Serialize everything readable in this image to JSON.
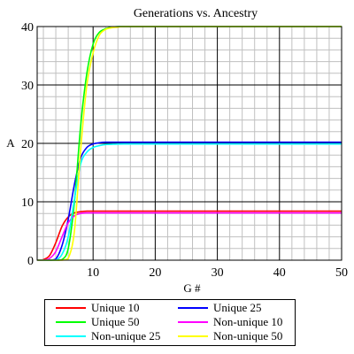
{
  "chart_data": {
    "type": "line",
    "title": "Generations vs. Ancestry",
    "xlabel": "G #",
    "ylabel": "A",
    "xlim": [
      1,
      50
    ],
    "ylim": [
      0,
      40
    ],
    "xticks": [
      10,
      20,
      30,
      40,
      50
    ],
    "yticks": [
      0,
      10,
      20,
      30,
      40
    ],
    "grid": true,
    "legend_position": "bottom",
    "series": [
      {
        "name": "Unique 10",
        "color": "#ff0000",
        "x": [
          1,
          2,
          3,
          4,
          5,
          6,
          7,
          8,
          9,
          10,
          12,
          15,
          20,
          30,
          40,
          50
        ],
        "y": [
          0,
          0.1,
          0.8,
          3,
          5.8,
          7.4,
          8.1,
          8.3,
          8.4,
          8.4,
          8.4,
          8.4,
          8.4,
          8.4,
          8.4,
          8.4
        ]
      },
      {
        "name": "Unique 25",
        "color": "#0000ff",
        "x": [
          1,
          2,
          3,
          4,
          5,
          6,
          7,
          8,
          9,
          10,
          11,
          12,
          15,
          20,
          30,
          40,
          50
        ],
        "y": [
          0,
          0,
          0,
          0.2,
          2.5,
          7,
          13,
          17.5,
          19.3,
          19.9,
          20.1,
          20.2,
          20.2,
          20.2,
          20.2,
          20.2,
          20.2
        ]
      },
      {
        "name": "Unique 50",
        "color": "#00ff00",
        "x": [
          1,
          2,
          3,
          4,
          5,
          6,
          7,
          8,
          9,
          10,
          11,
          12,
          13,
          14,
          15,
          20,
          30,
          40,
          50
        ],
        "y": [
          0,
          0,
          0,
          0,
          0.1,
          2,
          10,
          23,
          32,
          37,
          39,
          39.6,
          39.9,
          40,
          40,
          40,
          40,
          40,
          40
        ]
      },
      {
        "name": "Non-unique 10",
        "color": "#ff00ff",
        "x": [
          1,
          2,
          3,
          4,
          5,
          6,
          7,
          8,
          9,
          10,
          12,
          15,
          20,
          30,
          40,
          50
        ],
        "y": [
          0,
          0,
          0.3,
          1.5,
          4,
          6.4,
          7.6,
          8,
          8.1,
          8.1,
          8.1,
          8.1,
          8.1,
          8.1,
          8.1,
          8.1
        ]
      },
      {
        "name": "Non-unique 25",
        "color": "#00ffff",
        "x": [
          1,
          2,
          3,
          4,
          5,
          6,
          7,
          8,
          9,
          10,
          11,
          12,
          15,
          20,
          30,
          40,
          50
        ],
        "y": [
          0,
          0,
          0,
          0,
          1,
          4,
          10.5,
          16.5,
          18.5,
          19.3,
          19.6,
          19.8,
          19.9,
          19.9,
          19.9,
          19.9,
          19.9
        ]
      },
      {
        "name": "Non-unique 50",
        "color": "#ffff00",
        "x": [
          1,
          2,
          3,
          4,
          5,
          6,
          7,
          8,
          9,
          10,
          11,
          12,
          13,
          14,
          15,
          20,
          30,
          40,
          50
        ],
        "y": [
          0,
          0,
          0,
          0,
          0,
          0.3,
          5,
          19,
          30,
          35.5,
          38.5,
          39.5,
          39.8,
          39.9,
          40,
          40,
          40,
          40,
          40
        ]
      }
    ]
  }
}
